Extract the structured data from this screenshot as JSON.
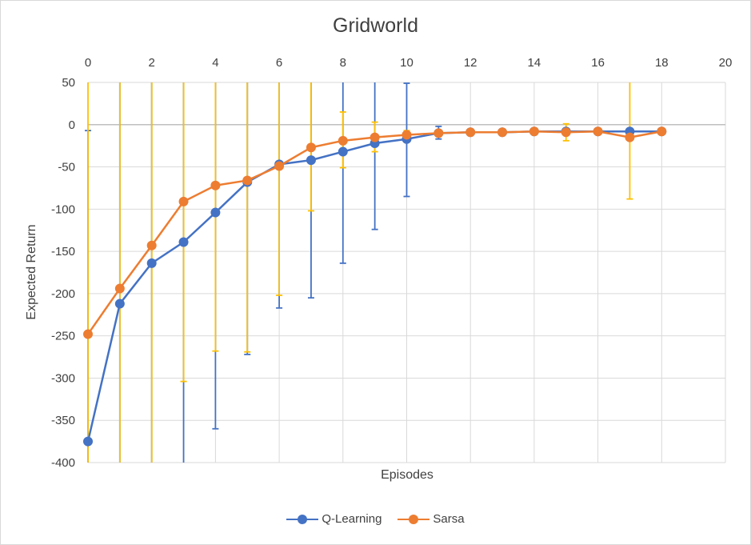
{
  "chart_data": {
    "type": "line",
    "title": "Gridworld",
    "xlabel": "Episodes",
    "ylabel": "Expected Return",
    "xlim": [
      0,
      20
    ],
    "ylim": [
      -400,
      50
    ],
    "x_ticks": [
      0,
      2,
      4,
      6,
      8,
      10,
      12,
      14,
      16,
      18,
      20
    ],
    "y_ticks": [
      50,
      0,
      -50,
      -100,
      -150,
      -200,
      -250,
      -300,
      -350,
      -400
    ],
    "x_axis_position": "top",
    "grid": true,
    "legend_position": "bottom",
    "x": [
      0,
      1,
      2,
      3,
      4,
      5,
      6,
      7,
      8,
      9,
      10,
      11,
      12,
      13,
      14,
      15,
      16,
      17,
      18
    ],
    "series": [
      {
        "name": "Q-Learning",
        "color": "#4472c4",
        "values": [
          -375,
          -212,
          -164,
          -139,
          -104,
          -68,
          -47,
          -42,
          -32,
          -22,
          -17,
          -10,
          -9,
          -9,
          -8,
          -8,
          -8,
          -8,
          -8
        ],
        "error_low": [
          -400,
          -400,
          -400,
          -400,
          -360,
          -272,
          -217,
          -205,
          -164,
          -124,
          -85,
          -17,
          -10,
          -9,
          -9,
          -9,
          -9,
          -9,
          -9
        ],
        "error_high": [
          -7,
          50,
          50,
          50,
          50,
          50,
          50,
          50,
          50,
          50,
          49,
          -2,
          -8,
          -8,
          -7,
          -7,
          -7,
          -7,
          -7
        ]
      },
      {
        "name": "Sarsa",
        "color": "#ed7d31",
        "values": [
          -248,
          -194,
          -143,
          -91,
          -72,
          -66,
          -49,
          -27,
          -19,
          -15,
          -12,
          -10,
          -9,
          -9,
          -8,
          -9,
          -8,
          -15,
          -8
        ],
        "error_color": "#ffc000",
        "error_low": [
          -400,
          -400,
          -400,
          -304,
          -268,
          -269,
          -202,
          -102,
          -51,
          -32,
          -17,
          -12,
          -11,
          -10,
          -9,
          -19,
          -9,
          -88,
          -9
        ],
        "error_high": [
          50,
          50,
          50,
          50,
          50,
          50,
          50,
          50,
          15,
          3,
          -7,
          -8,
          -7,
          -7,
          -7,
          1,
          -7,
          50,
          -7
        ]
      }
    ]
  }
}
